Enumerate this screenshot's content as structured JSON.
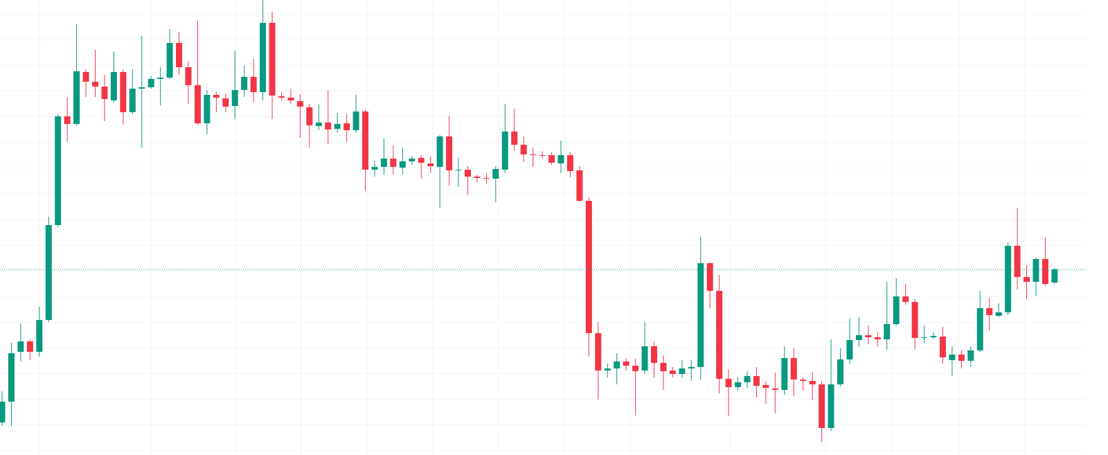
{
  "chart_data": {
    "type": "candlestick",
    "ylim": [
      0,
      657
    ],
    "grid": true,
    "up_color": "#089981",
    "down_color": "#f23645",
    "last_price_line": true,
    "open": [
      47,
      77,
      149,
      164,
      149,
      195,
      332,
      489,
      478,
      553,
      539,
      532,
      512,
      553,
      495,
      529,
      531,
      543,
      545,
      595,
      560,
      534,
      479,
      520,
      515,
      504,
      527,
      546,
      524,
      624,
      518,
      516,
      511,
      502,
      475,
      480,
      471,
      479,
      469,
      496,
      412,
      416,
      428,
      415,
      424,
      429,
      421,
      416,
      460,
      411,
      412,
      402,
      400,
      399,
      412,
      467,
      448,
      434,
      433,
      433,
      421,
      433,
      411,
      367,
      176,
      122,
      125,
      135,
      129,
      122,
      157,
      133,
      122,
      117,
      125,
      127,
      277,
      237,
      110,
      98,
      105,
      114,
      101,
      96,
      94,
      140,
      109,
      107,
      102,
      39,
      102,
      138,
      166,
      173,
      170,
      167,
      189,
      229,
      221,
      169,
      170,
      171,
      137,
      145,
      136,
      151,
      212,
      201,
      206,
      302,
      257,
      250,
      283,
      249
    ],
    "high": [
      92,
      162,
      190,
      167,
      214,
      344,
      492,
      517,
      622,
      557,
      585,
      549,
      583,
      557,
      557,
      605,
      547,
      560,
      615,
      611,
      568,
      627,
      527,
      524,
      522,
      584,
      562,
      572,
      657,
      640,
      524,
      529,
      521,
      507,
      507,
      527,
      494,
      492,
      520,
      499,
      425,
      457,
      447,
      444,
      432,
      433,
      431,
      462,
      490,
      430,
      417,
      405,
      407,
      417,
      507,
      500,
      460,
      444,
      439,
      437,
      454,
      437,
      417,
      372,
      192,
      132,
      147,
      140,
      139,
      192,
      164,
      144,
      127,
      137,
      137,
      315,
      279,
      260,
      124,
      112,
      121,
      127,
      107,
      119,
      157,
      154,
      112,
      120,
      107,
      167,
      154,
      197,
      199,
      187,
      177,
      250,
      255,
      247,
      225,
      187,
      177,
      185,
      157,
      152,
      157,
      237,
      227,
      219,
      307,
      357,
      274,
      285,
      314,
      270
    ],
    "low": [
      42,
      42,
      135,
      137,
      142,
      192,
      329,
      452,
      475,
      517,
      517,
      482,
      509,
      477,
      492,
      444,
      529,
      505,
      543,
      549,
      507,
      477,
      463,
      495,
      495,
      485,
      517,
      509,
      512,
      485,
      512,
      507,
      458,
      444,
      469,
      449,
      465,
      452,
      465,
      381,
      402,
      405,
      405,
      405,
      419,
      399,
      407,
      357,
      389,
      387,
      376,
      394,
      392,
      365,
      407,
      439,
      423,
      416,
      428,
      419,
      407,
      401,
      366,
      142,
      80,
      112,
      102,
      122,
      57,
      117,
      112,
      94,
      112,
      112,
      107,
      109,
      212,
      89,
      56,
      94,
      97,
      83,
      74,
      60,
      87,
      85,
      93,
      79,
      19,
      35,
      99,
      132,
      157,
      160,
      157,
      152,
      187,
      217,
      152,
      162,
      167,
      132,
      114,
      125,
      127,
      149,
      179,
      199,
      202,
      239,
      225,
      230,
      244,
      247
    ],
    "close": [
      77,
      147,
      164,
      149,
      195,
      332,
      489,
      478,
      554,
      539,
      532,
      514,
      553,
      495,
      529,
      531,
      543,
      545,
      595,
      560,
      534,
      479,
      520,
      516,
      503,
      527,
      546,
      524,
      624,
      519,
      516,
      512,
      503,
      476,
      480,
      470,
      478,
      469,
      496,
      412,
      416,
      428,
      416,
      424,
      428,
      422,
      417,
      460,
      411,
      412,
      402,
      400,
      399,
      413,
      467,
      448,
      434,
      433,
      432,
      422,
      433,
      410,
      367,
      176,
      122,
      125,
      135,
      129,
      121,
      157,
      133,
      121,
      117,
      125,
      127,
      277,
      237,
      110,
      98,
      105,
      114,
      100,
      97,
      94,
      140,
      109,
      107,
      102,
      39,
      102,
      138,
      166,
      173,
      170,
      167,
      189,
      229,
      221,
      169,
      170,
      172,
      141,
      145,
      136,
      151,
      212,
      202,
      206,
      302,
      257,
      250,
      283,
      247,
      268
    ]
  }
}
